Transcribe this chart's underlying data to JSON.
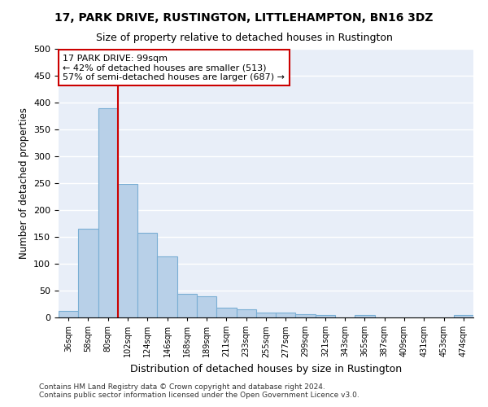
{
  "title": "17, PARK DRIVE, RUSTINGTON, LITTLEHAMPTON, BN16 3DZ",
  "subtitle": "Size of property relative to detached houses in Rustington",
  "xlabel": "Distribution of detached houses by size in Rustington",
  "ylabel": "Number of detached properties",
  "bar_color": "#b8d0e8",
  "bar_edge_color": "#7aaed4",
  "bg_color": "#e8eef8",
  "grid_color": "#ffffff",
  "annotation_box_color": "#cc0000",
  "annotation_line_color": "#cc0000",
  "annotation_text": "17 PARK DRIVE: 99sqm\n← 42% of detached houses are smaller (513)\n57% of semi-detached houses are larger (687) →",
  "footer_line1": "Contains HM Land Registry data © Crown copyright and database right 2024.",
  "footer_line2": "Contains public sector information licensed under the Open Government Licence v3.0.",
  "categories": [
    "36sqm",
    "58sqm",
    "80sqm",
    "102sqm",
    "124sqm",
    "146sqm",
    "168sqm",
    "189sqm",
    "211sqm",
    "233sqm",
    "255sqm",
    "277sqm",
    "299sqm",
    "321sqm",
    "343sqm",
    "365sqm",
    "387sqm",
    "409sqm",
    "431sqm",
    "453sqm",
    "474sqm"
  ],
  "values": [
    12,
    165,
    390,
    248,
    157,
    113,
    44,
    40,
    18,
    15,
    9,
    9,
    6,
    4,
    0,
    4,
    0,
    0,
    0,
    0,
    4
  ],
  "prop_line_index": 3,
  "ylim": [
    0,
    500
  ],
  "yticks": [
    0,
    50,
    100,
    150,
    200,
    250,
    300,
    350,
    400,
    450,
    500
  ]
}
